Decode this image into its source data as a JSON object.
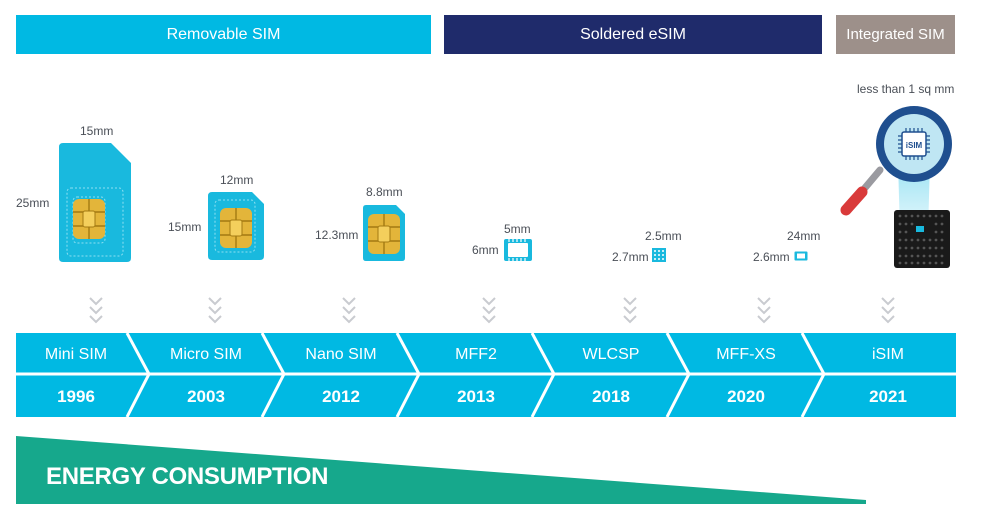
{
  "categories": {
    "removable": "Removable SIM",
    "soldered": "Soldered eSIM",
    "integrated": "Integrated SIM"
  },
  "isim_note": "less than 1 sq mm",
  "isim_chip_label": "iSIM",
  "generations": [
    {
      "name": "Mini SIM",
      "year": "1996",
      "width": "15mm",
      "height": "25mm"
    },
    {
      "name": "Micro SIM",
      "year": "2003",
      "width": "12mm",
      "height": "15mm"
    },
    {
      "name": "Nano SIM",
      "year": "2012",
      "width": "8.8mm",
      "height": "12.3mm"
    },
    {
      "name": "MFF2",
      "year": "2013",
      "width": "5mm",
      "height": "6mm"
    },
    {
      "name": "WLCSP",
      "year": "2018",
      "width": "2.5mm",
      "height": "2.7mm"
    },
    {
      "name": "MFF-XS",
      "year": "2020",
      "width": "24mm",
      "height": "2.6mm"
    },
    {
      "name": "iSIM",
      "year": "2021"
    }
  ],
  "energy_label": "ENERGY CONSUMPTION",
  "colors": {
    "cyan": "#00b9e3",
    "navy": "#1f2b6b",
    "taupe": "#9d908a",
    "teal": "#16a88c",
    "gold": "#f4c430",
    "chevron": "#c9cbd0"
  }
}
